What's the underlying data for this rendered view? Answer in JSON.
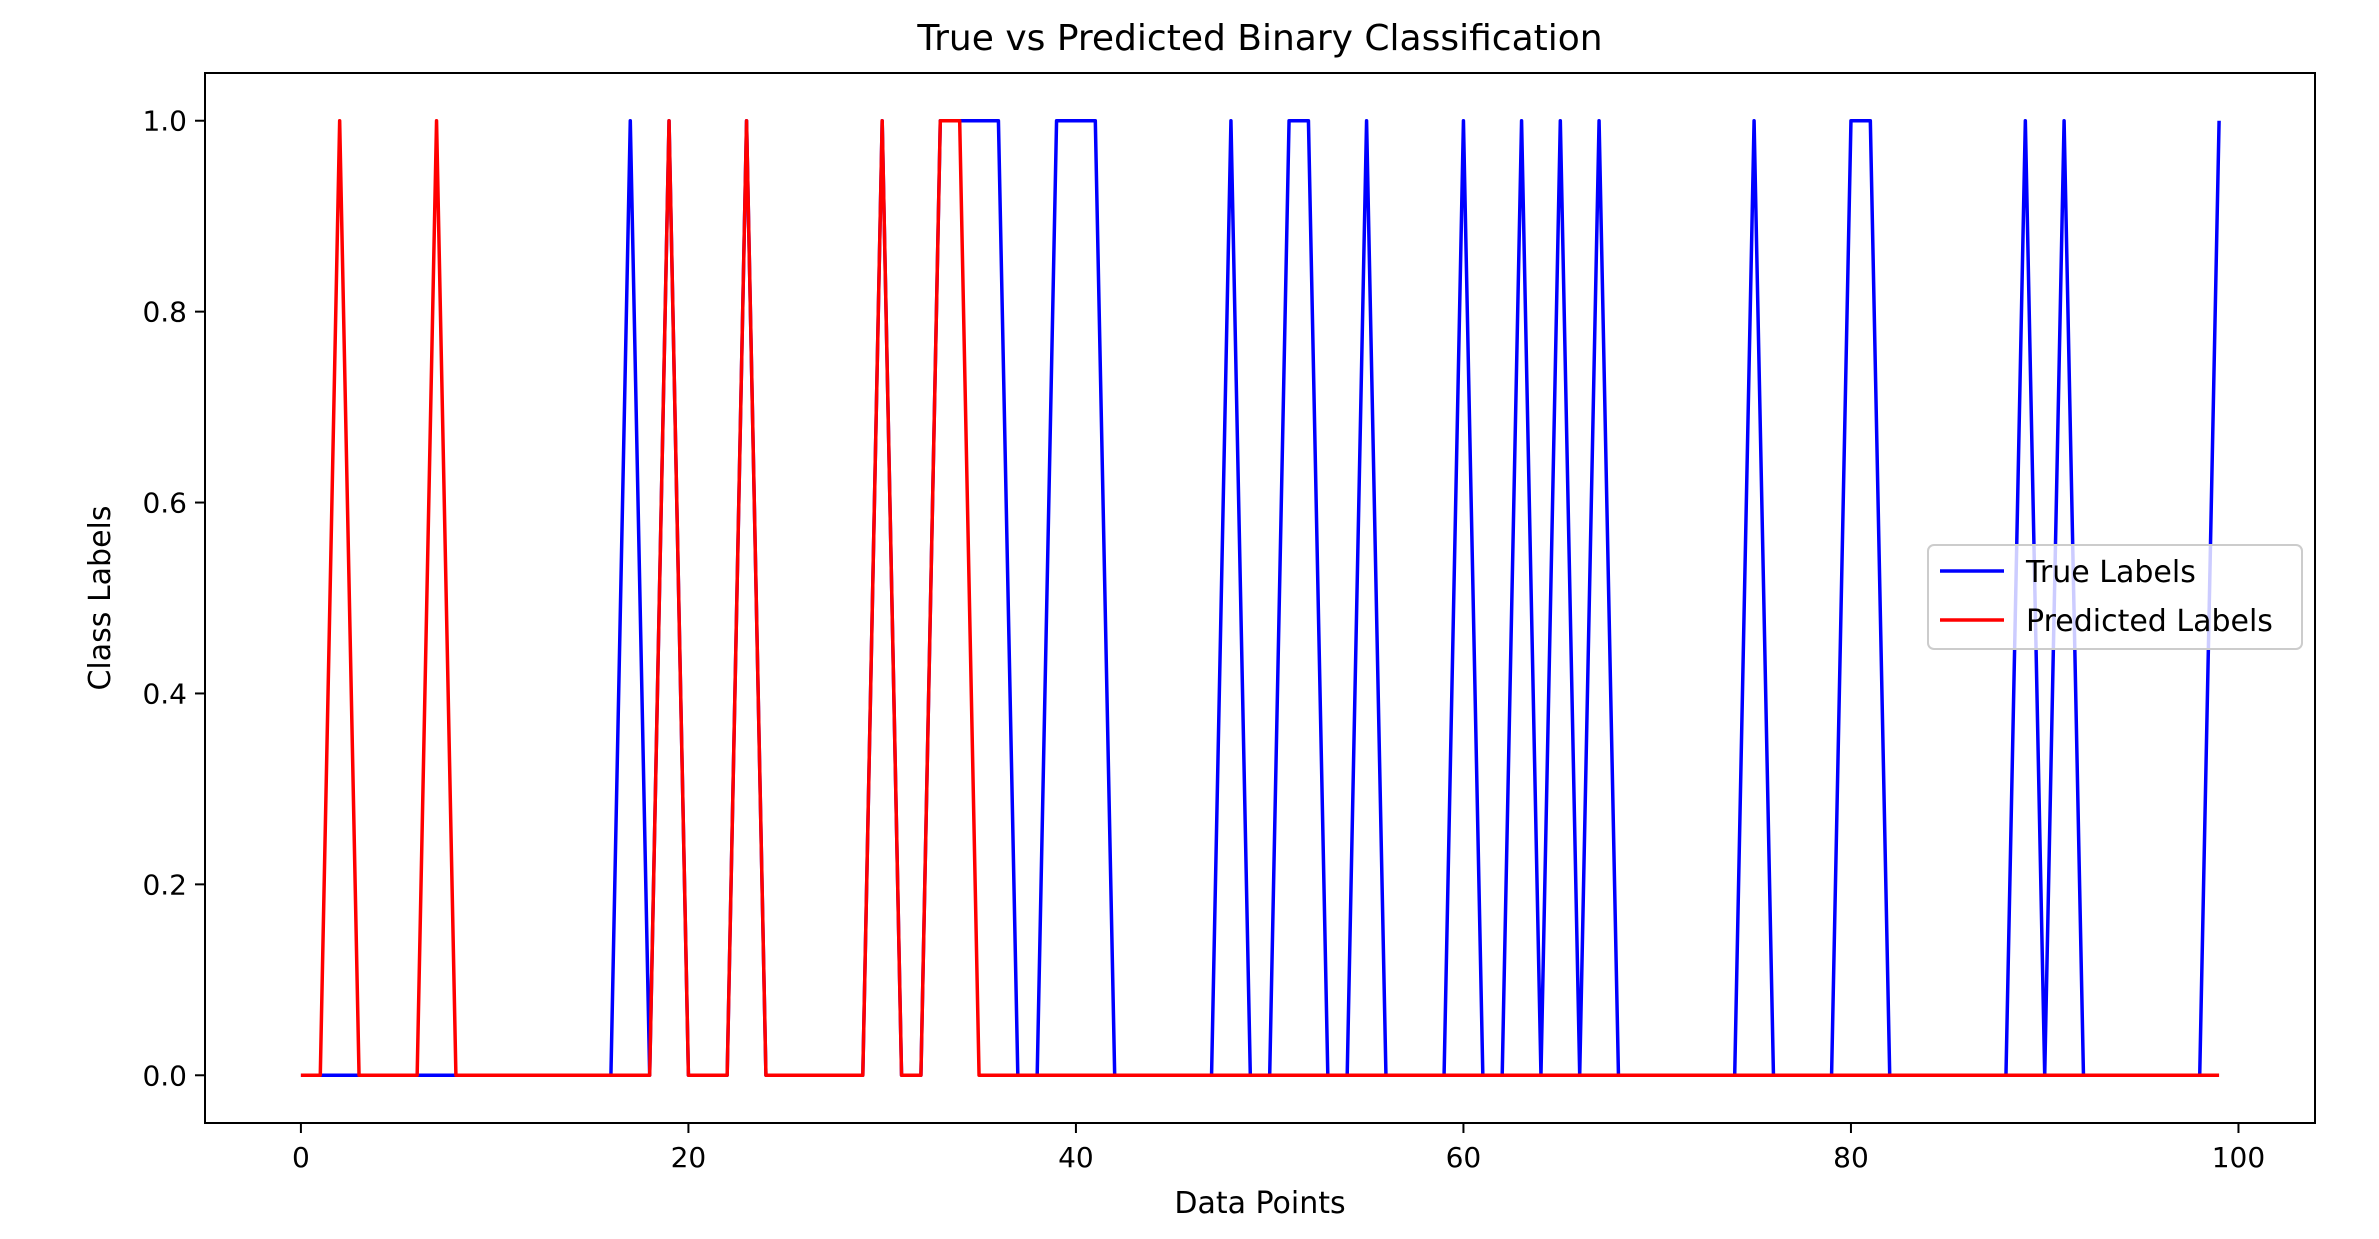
{
  "chart_data": {
    "type": "line",
    "title": "True vs Predicted Binary Classification",
    "xlabel": "Data Points",
    "ylabel": "Class Labels",
    "xlim": [
      -4.95,
      103.95
    ],
    "ylim": [
      -0.05,
      1.05
    ],
    "xticks": [
      0,
      20,
      40,
      60,
      80,
      100
    ],
    "yticks": [
      0.0,
      0.2,
      0.4,
      0.6,
      0.8,
      1.0
    ],
    "ytick_labels": [
      "0.0",
      "0.2",
      "0.4",
      "0.6",
      "0.8",
      "1.0"
    ],
    "grid": false,
    "legend": "center-right",
    "x": [
      0,
      1,
      2,
      3,
      4,
      5,
      6,
      7,
      8,
      9,
      10,
      11,
      12,
      13,
      14,
      15,
      16,
      17,
      18,
      19,
      20,
      21,
      22,
      23,
      24,
      25,
      26,
      27,
      28,
      29,
      30,
      31,
      32,
      33,
      34,
      35,
      36,
      37,
      38,
      39,
      40,
      41,
      42,
      43,
      44,
      45,
      46,
      47,
      48,
      49,
      50,
      51,
      52,
      53,
      54,
      55,
      56,
      57,
      58,
      59,
      60,
      61,
      62,
      63,
      64,
      65,
      66,
      67,
      68,
      69,
      70,
      71,
      72,
      73,
      74,
      75,
      76,
      77,
      78,
      79,
      80,
      81,
      82,
      83,
      84,
      85,
      86,
      87,
      88,
      89,
      90,
      91,
      92,
      93,
      94,
      95,
      96,
      97,
      98,
      99
    ],
    "series": [
      {
        "name": "True Labels",
        "color": "#0000ff",
        "values": [
          0,
          0,
          0,
          0,
          0,
          0,
          0,
          0,
          0,
          0,
          0,
          0,
          0,
          0,
          0,
          0,
          0,
          1,
          0,
          1,
          0,
          0,
          0,
          1,
          0,
          0,
          0,
          0,
          0,
          0,
          1,
          0,
          0,
          1,
          1,
          1,
          1,
          0,
          0,
          1,
          1,
          1,
          0,
          0,
          0,
          0,
          0,
          0,
          1,
          0,
          0,
          1,
          1,
          0,
          0,
          1,
          0,
          0,
          0,
          0,
          1,
          0,
          0,
          1,
          0,
          1,
          0,
          1,
          0,
          0,
          0,
          0,
          0,
          0,
          0,
          1,
          0,
          0,
          0,
          0,
          1,
          1,
          0,
          0,
          0,
          0,
          0,
          0,
          0,
          1,
          0,
          1,
          0,
          0,
          0,
          0,
          0,
          0,
          0,
          1
        ]
      },
      {
        "name": "Predicted Labels",
        "color": "#ff0000",
        "values": [
          0,
          0,
          1,
          0,
          0,
          0,
          0,
          1,
          0,
          0,
          0,
          0,
          0,
          0,
          0,
          0,
          0,
          0,
          0,
          1,
          0,
          0,
          0,
          1,
          0,
          0,
          0,
          0,
          0,
          0,
          1,
          0,
          0,
          1,
          1,
          0,
          0,
          0,
          0,
          0,
          0,
          0,
          0,
          0,
          0,
          0,
          0,
          0,
          0,
          0,
          0,
          0,
          0,
          0,
          0,
          0,
          0,
          0,
          0,
          0,
          0,
          0,
          0,
          0,
          0,
          0,
          0,
          0,
          0,
          0,
          0,
          0,
          0,
          0,
          0,
          0,
          0,
          0,
          0,
          0,
          0,
          0,
          0,
          0,
          0,
          0,
          0,
          0,
          0,
          0,
          0,
          0,
          0,
          0,
          0,
          0,
          0,
          0,
          0,
          0
        ]
      }
    ]
  }
}
